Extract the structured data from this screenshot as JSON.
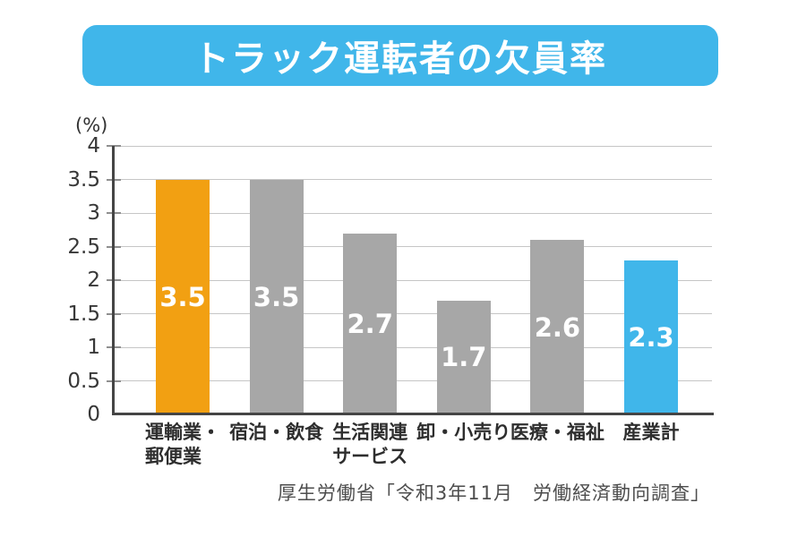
{
  "title": "トラック運転者の欠員率",
  "unit_label": "(%)",
  "source": "厚生労働省「令和3年11月　労働経済動向調査」",
  "colors": {
    "banner_blue": "#40b6ea",
    "highlight_orange": "#f2a012",
    "bar_gray": "#a7a7a7",
    "total_blue": "#40b6ea",
    "axis": "#454545",
    "grid": "#c6c6c6",
    "value_label": "#ffffff"
  },
  "chart_data": {
    "type": "bar",
    "title": "トラック運転者の欠員率",
    "xlabel": "",
    "ylabel": "(%)",
    "categories": [
      "運輸業・\n郵便業",
      "宿泊・飲食",
      "生活関連\nサービス",
      "卸・小売り",
      "医療・福祉",
      "産業計"
    ],
    "values": [
      3.5,
      3.5,
      2.7,
      1.7,
      2.6,
      2.3
    ],
    "value_labels": [
      "3.5",
      "3.5",
      "2.7",
      "1.7",
      "2.6",
      "2.3"
    ],
    "bar_colors": [
      "#f2a012",
      "#a7a7a7",
      "#a7a7a7",
      "#a7a7a7",
      "#a7a7a7",
      "#40b6ea"
    ],
    "ylim": [
      0,
      4
    ],
    "ytick_values": [
      0,
      0.5,
      1,
      1.5,
      2,
      2.5,
      3,
      3.5,
      4
    ],
    "ytick_labels": [
      "0",
      "0.5",
      "1",
      "1.5",
      "2",
      "2.5",
      "3",
      "3.5",
      "4"
    ],
    "grid": true,
    "legend": false,
    "source": "厚生労働省「令和3年11月　労働経済動向調査」"
  }
}
